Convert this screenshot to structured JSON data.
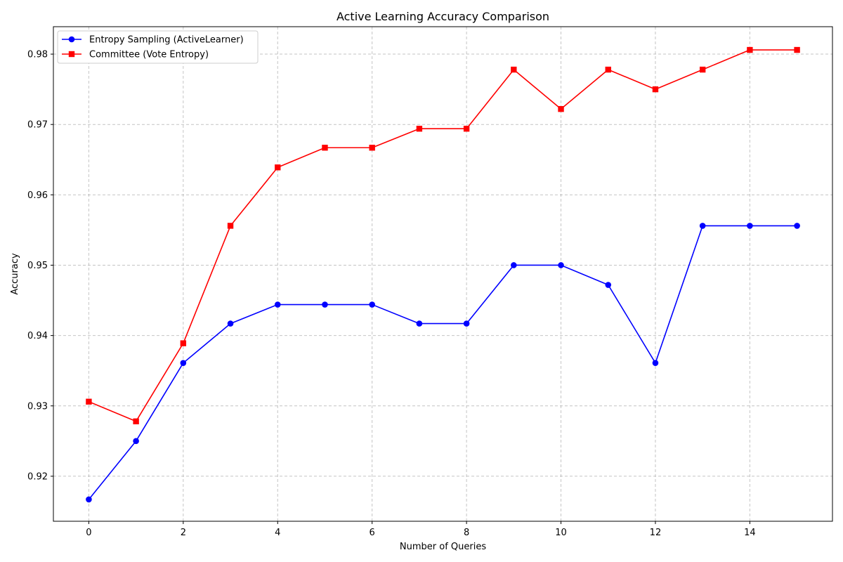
{
  "chart_data": {
    "type": "line",
    "title": "Active Learning Accuracy Comparison",
    "xlabel": "Number of Queries",
    "ylabel": "Accuracy",
    "x": [
      0,
      1,
      2,
      3,
      4,
      5,
      6,
      7,
      8,
      9,
      10,
      11,
      12,
      13,
      14,
      15
    ],
    "xlim": [
      -0.75,
      15.75
    ],
    "ylim": [
      0.9136,
      0.9839
    ],
    "xticks": [
      0,
      2,
      4,
      6,
      8,
      10,
      12,
      14
    ],
    "xtick_labels": [
      "0",
      "2",
      "4",
      "6",
      "8",
      "10",
      "12",
      "14"
    ],
    "yticks": [
      0.92,
      0.93,
      0.94,
      0.95,
      0.96,
      0.97,
      0.98
    ],
    "ytick_labels": [
      "0.92",
      "0.93",
      "0.94",
      "0.95",
      "0.96",
      "0.97",
      "0.98"
    ],
    "grid": true,
    "legend_position": "top-left",
    "series": [
      {
        "name": "Entropy Sampling (ActiveLearner)",
        "color": "#0000ff",
        "marker": "circle",
        "values": [
          0.9167,
          0.925,
          0.9361,
          0.9417,
          0.9444,
          0.9444,
          0.9444,
          0.9417,
          0.9417,
          0.95,
          0.95,
          0.9472,
          0.9361,
          0.9556,
          0.9556,
          0.9556
        ]
      },
      {
        "name": "Committee (Vote Entropy)",
        "color": "#ff0000",
        "marker": "square",
        "values": [
          0.9306,
          0.9278,
          0.9389,
          0.9556,
          0.9639,
          0.9667,
          0.9667,
          0.9694,
          0.9694,
          0.9778,
          0.9722,
          0.9778,
          0.975,
          0.9778,
          0.9806,
          0.9806
        ]
      }
    ]
  }
}
